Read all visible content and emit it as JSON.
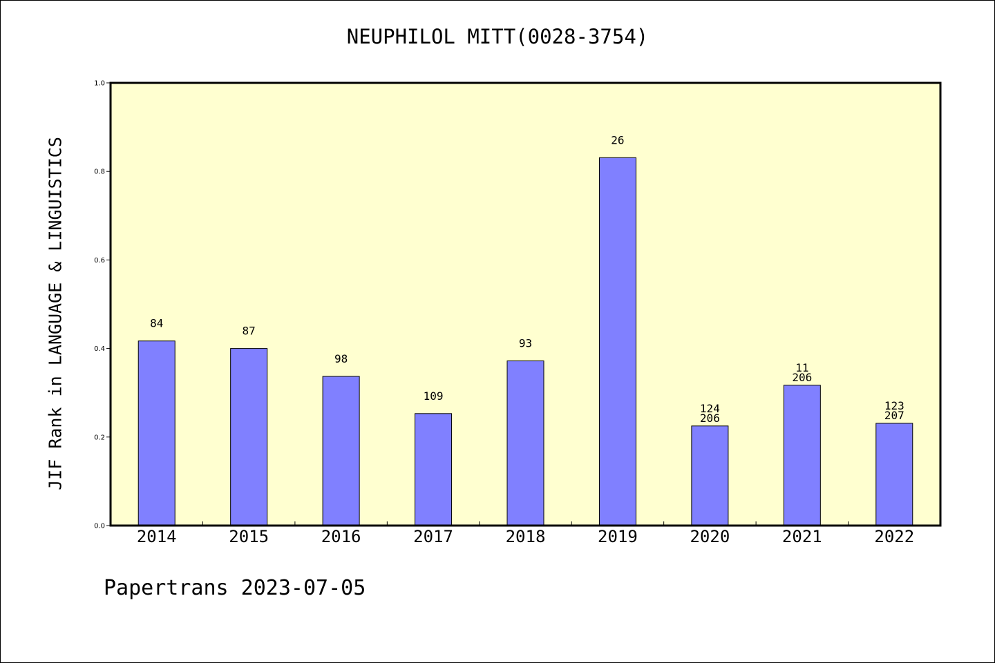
{
  "title": "NEUPHILOL MITT(0028-3754)",
  "footer": "Papertrans 2023-07-05",
  "colors": {
    "plot_bg": "#ffffd0",
    "bar_fill": "#8080ff",
    "axis": "#000000"
  },
  "chart_data": {
    "type": "bar",
    "title": "NEUPHILOL MITT(0028-3754)",
    "xlabel": "",
    "ylabel": "JIF Rank in LANGUAGE & LINGUISTICS",
    "ylim": [
      0,
      1.0
    ],
    "yticks": [
      "0.0",
      "0.2",
      "0.4",
      "0.6",
      "0.8",
      "1.0"
    ],
    "grid": false,
    "categories": [
      "2014",
      "2015",
      "2016",
      "2017",
      "2018",
      "2019",
      "2020",
      "2021",
      "2022"
    ],
    "values": [
      0.417,
      0.4,
      0.337,
      0.253,
      0.372,
      0.831,
      0.225,
      0.317,
      0.231
    ],
    "bar_labels": [
      [
        "84"
      ],
      [
        "87"
      ],
      [
        "98"
      ],
      [
        "109"
      ],
      [
        "93"
      ],
      [
        "26"
      ],
      [
        "124",
        "206"
      ],
      [
        "11",
        "206"
      ],
      [
        "123",
        "207"
      ]
    ]
  }
}
